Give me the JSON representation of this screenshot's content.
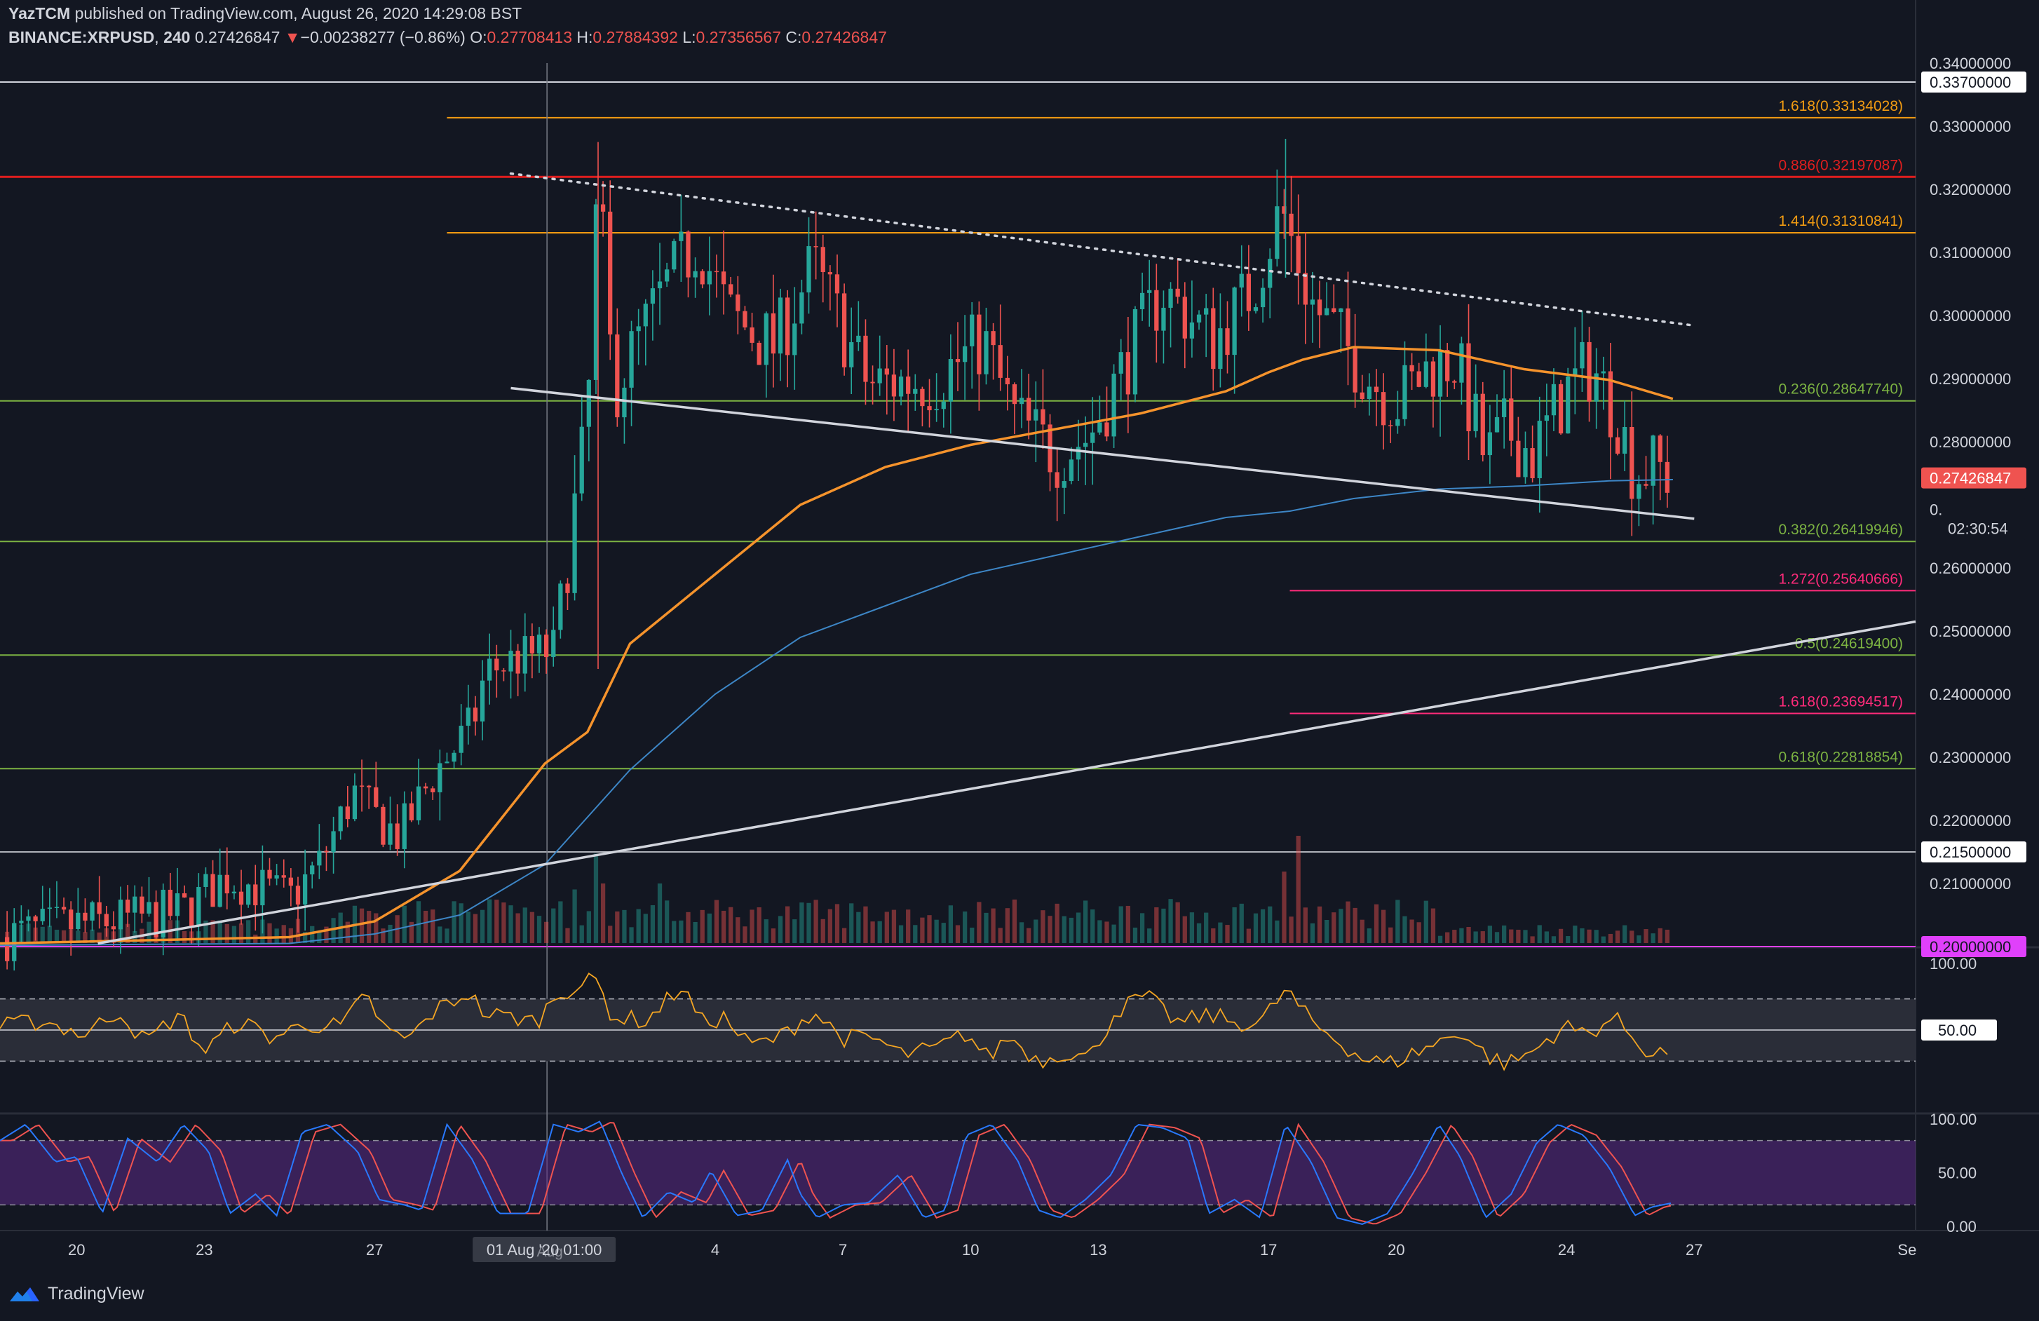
{
  "header": {
    "author": "YazTCM",
    "published_text": "published on TradingView.com, August 26, 2020 14:29:08 BST",
    "symbol": "BINANCE:XRPUSD",
    "interval": "240",
    "last_price": "0.27426847",
    "change_arrow": "▼",
    "change": "−0.00238277 (−0.86%)",
    "o_label": "O:",
    "o_value": "0.27708413",
    "h_label": "H:",
    "h_value": "0.27884392",
    "l_label": "L:",
    "l_value": "0.27356567",
    "c_label": "C:",
    "c_value": "0.27426847"
  },
  "brand": {
    "name": "TradingView",
    "logo_icon": "tradingview-logo-icon"
  },
  "colors": {
    "background": "#131722",
    "bull": "#26a69a",
    "bear": "#ef5350",
    "ma_orange": "#f5932c",
    "ma_blue": "#3d86c6",
    "fib_orange": "#f39c12",
    "fib_green": "#7cb342",
    "fib_pink": "#ff2b7a",
    "resistance_red": "#e01e1e",
    "magenta": "#e040fb",
    "rsi_line": "#f5a623",
    "stoch_k": "#2979ff",
    "stoch_d": "#ef5350",
    "stoch_band": "#5b2a86"
  },
  "chart_data": {
    "type": "candlestick",
    "symbol": "BINANCE:XRPUSD",
    "ylim": [
      0.2,
      0.34
    ],
    "y_ticks": [
      "0.34000000",
      "0.33000000",
      "0.32000000",
      "0.31000000",
      "0.30000000",
      "0.29000000",
      "0.28000000",
      "0.26000000",
      "0.25000000",
      "0.24000000",
      "0.23000000",
      "0.22000000",
      "0.21000000"
    ],
    "y_tick_values": [
      0.34,
      0.33,
      0.32,
      0.31,
      0.3,
      0.29,
      0.28,
      0.26,
      0.25,
      0.24,
      0.23,
      0.22,
      0.21
    ],
    "x_ticks": [
      "20",
      "23",
      "27",
      "4",
      "7",
      "10",
      "13",
      "17",
      "20",
      "24",
      "27",
      "Se"
    ],
    "x_tick_pos": [
      20,
      23,
      27,
      35,
      38,
      41,
      44,
      48,
      51,
      55,
      58,
      63
    ],
    "x_range": [
      18.2,
      63.2
    ],
    "crosshair_label": "01 Aug '20   01:00",
    "crosshair_label_sub": "Aug",
    "crosshair_x": 31.05,
    "price_badges": [
      {
        "text": "0.33700000",
        "value": 0.337,
        "style": "white"
      },
      {
        "text": "0.27426847",
        "value": 0.27426847,
        "style": "red"
      },
      {
        "text": "0.",
        "sub": "02:30:54",
        "value": 0.2705,
        "style": "dark"
      },
      {
        "text": "0.21500000",
        "value": 0.215,
        "style": "white"
      },
      {
        "text": "0.20000000",
        "value": 0.2,
        "style": "magenta"
      }
    ],
    "horizontal_levels": [
      {
        "value": 0.337,
        "color": "#d1d4dc",
        "x_start": 18.2,
        "label": ""
      },
      {
        "value": 0.33134028,
        "color": "#f39c12",
        "x_start": 28.7,
        "label": "1.618(0.33134028)"
      },
      {
        "value": 0.32197087,
        "color": "#e01e1e",
        "x_start": 18.2,
        "label": "0.886(0.32197087)"
      },
      {
        "value": 0.31310841,
        "color": "#f39c12",
        "x_start": 28.7,
        "label": "1.414(0.31310841)"
      },
      {
        "value": 0.2864774,
        "color": "#7cb342",
        "x_start": 18.2,
        "label": "0.236(0.28647740)"
      },
      {
        "value": 0.26419946,
        "color": "#7cb342",
        "x_start": 18.2,
        "label": "0.382(0.26419946)"
      },
      {
        "value": 0.25640666,
        "color": "#ff2b7a",
        "x_start": 48.5,
        "label": "1.272(0.25640666)"
      },
      {
        "value": 0.246194,
        "color": "#7cb342",
        "x_start": 18.2,
        "label": "0.5(0.24619400)"
      },
      {
        "value": 0.23694517,
        "color": "#ff2b7a",
        "x_start": 48.5,
        "label": "1.618(0.23694517)"
      },
      {
        "value": 0.22818854,
        "color": "#7cb342",
        "x_start": 18.2,
        "label": "0.618(0.22818854)"
      },
      {
        "value": 0.215,
        "color": "#b0b3ba",
        "x_start": 18.2,
        "label": ""
      },
      {
        "value": 0.2,
        "color": "#e040fb",
        "x_start": 18.2,
        "label": ""
      }
    ],
    "trendlines": [
      {
        "points": [
          [
            30.2,
            0.2885
          ],
          [
            58.0,
            0.2678
          ]
        ],
        "color": "#d1d4dc",
        "style": "solid"
      },
      {
        "points": [
          [
            20.5,
            0.2005
          ],
          [
            63.2,
            0.2515
          ]
        ],
        "color": "#d1d4dc",
        "style": "solid"
      },
      {
        "points": [
          [
            30.2,
            0.3225
          ],
          [
            57.9,
            0.2985
          ]
        ],
        "color": "#d1d4dc",
        "style": "dotted"
      }
    ],
    "close_anchors": [
      [
        18.2,
        0.2015
      ],
      [
        20.0,
        0.2035
      ],
      [
        21.5,
        0.2045
      ],
      [
        22.5,
        0.2055
      ],
      [
        23.5,
        0.211
      ],
      [
        24.2,
        0.2095
      ],
      [
        25.0,
        0.2075
      ],
      [
        25.7,
        0.213
      ],
      [
        26.5,
        0.2245
      ],
      [
        27.0,
        0.2205
      ],
      [
        27.6,
        0.2175
      ],
      [
        28.4,
        0.2275
      ],
      [
        29.3,
        0.235
      ],
      [
        29.6,
        0.2435
      ],
      [
        30.3,
        0.2455
      ],
      [
        31.2,
        0.247
      ],
      [
        31.6,
        0.265
      ],
      [
        32.0,
        0.283
      ],
      [
        32.25,
        0.3225
      ],
      [
        32.6,
        0.288
      ],
      [
        33.2,
        0.296
      ],
      [
        33.8,
        0.304
      ],
      [
        34.6,
        0.312
      ],
      [
        35.3,
        0.3
      ],
      [
        36.4,
        0.295
      ],
      [
        37.3,
        0.308
      ],
      [
        38.6,
        0.289
      ],
      [
        40.2,
        0.29
      ],
      [
        41.3,
        0.296
      ],
      [
        42.0,
        0.284
      ],
      [
        43.0,
        0.278
      ],
      [
        43.8,
        0.281
      ],
      [
        44.6,
        0.292
      ],
      [
        45.5,
        0.304
      ],
      [
        46.7,
        0.296
      ],
      [
        47.6,
        0.304
      ],
      [
        48.3,
        0.317
      ],
      [
        49.0,
        0.302
      ],
      [
        49.7,
        0.296
      ],
      [
        50.4,
        0.29
      ],
      [
        51.0,
        0.286
      ],
      [
        51.8,
        0.292
      ],
      [
        52.4,
        0.293
      ],
      [
        53.1,
        0.277
      ],
      [
        53.6,
        0.282
      ],
      [
        54.2,
        0.278
      ],
      [
        55.0,
        0.288
      ],
      [
        55.6,
        0.292
      ],
      [
        56.2,
        0.284
      ],
      [
        56.6,
        0.275
      ],
      [
        57.1,
        0.276
      ],
      [
        57.5,
        0.27426847
      ]
    ],
    "candles_per_day": 6,
    "last_candle_x": 57.5,
    "ma_orange": [
      [
        18.2,
        0.2005
      ],
      [
        25.0,
        0.2015
      ],
      [
        27.0,
        0.204
      ],
      [
        29.0,
        0.212
      ],
      [
        31.0,
        0.229
      ],
      [
        32.0,
        0.234
      ],
      [
        33.0,
        0.248
      ],
      [
        35.0,
        0.259
      ],
      [
        37.0,
        0.27
      ],
      [
        39.0,
        0.276
      ],
      [
        41.0,
        0.2795
      ],
      [
        43.0,
        0.282
      ],
      [
        45.0,
        0.2845
      ],
      [
        47.0,
        0.288
      ],
      [
        48.0,
        0.291
      ],
      [
        48.8,
        0.293
      ],
      [
        50.0,
        0.295
      ],
      [
        52.0,
        0.2945
      ],
      [
        54.0,
        0.2915
      ],
      [
        56.0,
        0.2898
      ],
      [
        57.5,
        0.2868
      ]
    ],
    "ma_blue": [
      [
        18.2,
        0.2002
      ],
      [
        25.0,
        0.2005
      ],
      [
        27.0,
        0.202
      ],
      [
        29.0,
        0.205
      ],
      [
        31.0,
        0.213
      ],
      [
        33.0,
        0.228
      ],
      [
        35.0,
        0.24
      ],
      [
        37.0,
        0.249
      ],
      [
        39.0,
        0.254
      ],
      [
        41.0,
        0.259
      ],
      [
        43.0,
        0.262
      ],
      [
        45.0,
        0.265
      ],
      [
        47.0,
        0.268
      ],
      [
        48.5,
        0.269
      ],
      [
        50.0,
        0.271
      ],
      [
        52.0,
        0.2725
      ],
      [
        54.0,
        0.273
      ],
      [
        56.0,
        0.2738
      ],
      [
        57.5,
        0.274
      ]
    ],
    "volume_spikes": [
      [
        32.1,
        0.75
      ],
      [
        32.3,
        0.5
      ],
      [
        31.7,
        0.45
      ],
      [
        33.6,
        0.5
      ],
      [
        48.4,
        0.6
      ],
      [
        48.6,
        0.9
      ],
      [
        36.0,
        0.3
      ],
      [
        30.4,
        0.25
      ],
      [
        45.4,
        0.3
      ],
      [
        27.0,
        0.25
      ]
    ],
    "rsi": {
      "ylim": [
        0,
        100
      ],
      "levels": [
        70,
        50,
        30
      ],
      "axis_labels": [
        "100.00",
        "50.00"
      ],
      "anchors": [
        [
          18.2,
          52
        ],
        [
          19.2,
          56
        ],
        [
          20.2,
          47
        ],
        [
          21.0,
          63
        ],
        [
          21.6,
          42
        ],
        [
          22.4,
          60
        ],
        [
          23.0,
          36
        ],
        [
          23.8,
          56
        ],
        [
          24.6,
          45
        ],
        [
          25.4,
          54
        ],
        [
          26.2,
          52
        ],
        [
          26.8,
          72
        ],
        [
          27.3,
          48
        ],
        [
          27.8,
          44
        ],
        [
          28.4,
          62
        ],
        [
          29.2,
          74
        ],
        [
          29.6,
          60
        ],
        [
          30.3,
          58
        ],
        [
          30.8,
          55
        ],
        [
          31.3,
          74
        ],
        [
          32.2,
          82
        ],
        [
          32.6,
          58
        ],
        [
          33.4,
          56
        ],
        [
          34.2,
          78
        ],
        [
          34.7,
          55
        ],
        [
          35.2,
          58
        ],
        [
          35.8,
          40
        ],
        [
          36.5,
          45
        ],
        [
          37.3,
          62
        ],
        [
          38.0,
          45
        ],
        [
          38.8,
          44
        ],
        [
          39.4,
          34
        ],
        [
          40.2,
          38
        ],
        [
          40.9,
          48
        ],
        [
          41.4,
          32
        ],
        [
          41.9,
          46
        ],
        [
          42.6,
          30
        ],
        [
          43.2,
          36
        ],
        [
          43.8,
          32
        ],
        [
          44.4,
          62
        ],
        [
          45.1,
          72
        ],
        [
          45.9,
          54
        ],
        [
          46.6,
          60
        ],
        [
          47.2,
          55
        ],
        [
          47.8,
          54
        ],
        [
          48.4,
          76
        ],
        [
          49.0,
          55
        ],
        [
          49.6,
          44
        ],
        [
          50.2,
          32
        ],
        [
          50.8,
          28
        ],
        [
          51.4,
          35
        ],
        [
          52.0,
          42
        ],
        [
          52.5,
          50
        ],
        [
          53.1,
          34
        ],
        [
          53.6,
          28
        ],
        [
          54.2,
          36
        ],
        [
          54.9,
          52
        ],
        [
          55.5,
          48
        ],
        [
          56.1,
          58
        ],
        [
          56.6,
          45
        ],
        [
          57.0,
          34
        ],
        [
          57.5,
          38
        ]
      ]
    },
    "stoch": {
      "ylim": [
        0,
        100
      ],
      "band": [
        20,
        80
      ],
      "axis_labels": [
        "100.00",
        "50.00",
        "0.00"
      ],
      "k_anchors": [
        [
          18.2,
          80
        ],
        [
          18.8,
          95
        ],
        [
          19.5,
          60
        ],
        [
          20.0,
          65
        ],
        [
          20.6,
          12
        ],
        [
          21.2,
          82
        ],
        [
          21.9,
          60
        ],
        [
          22.5,
          95
        ],
        [
          23.1,
          70
        ],
        [
          23.6,
          12
        ],
        [
          24.2,
          30
        ],
        [
          24.7,
          10
        ],
        [
          25.3,
          88
        ],
        [
          25.9,
          95
        ],
        [
          26.6,
          70
        ],
        [
          27.1,
          25
        ],
        [
          27.7,
          20
        ],
        [
          28.1,
          15
        ],
        [
          28.7,
          95
        ],
        [
          29.3,
          62
        ],
        [
          29.9,
          12
        ],
        [
          30.6,
          12
        ],
        [
          31.2,
          95
        ],
        [
          31.8,
          88
        ],
        [
          32.3,
          98
        ],
        [
          32.8,
          50
        ],
        [
          33.3,
          8
        ],
        [
          33.9,
          32
        ],
        [
          34.5,
          22
        ],
        [
          34.9,
          52
        ],
        [
          35.5,
          10
        ],
        [
          36.1,
          15
        ],
        [
          36.7,
          62
        ],
        [
          37.0,
          30
        ],
        [
          37.4,
          8
        ],
        [
          38.0,
          20
        ],
        [
          38.6,
          22
        ],
        [
          39.3,
          48
        ],
        [
          39.9,
          8
        ],
        [
          40.4,
          15
        ],
        [
          40.9,
          85
        ],
        [
          41.5,
          95
        ],
        [
          42.1,
          62
        ],
        [
          42.6,
          15
        ],
        [
          43.1,
          8
        ],
        [
          43.7,
          25
        ],
        [
          44.3,
          48
        ],
        [
          44.9,
          95
        ],
        [
          45.5,
          92
        ],
        [
          46.1,
          82
        ],
        [
          46.6,
          12
        ],
        [
          47.2,
          25
        ],
        [
          47.8,
          8
        ],
        [
          48.4,
          95
        ],
        [
          49.0,
          60
        ],
        [
          49.6,
          8
        ],
        [
          50.2,
          2
        ],
        [
          50.8,
          12
        ],
        [
          51.4,
          50
        ],
        [
          52.0,
          95
        ],
        [
          52.5,
          65
        ],
        [
          53.1,
          8
        ],
        [
          53.7,
          30
        ],
        [
          54.3,
          78
        ],
        [
          54.8,
          95
        ],
        [
          55.4,
          85
        ],
        [
          56.0,
          55
        ],
        [
          56.6,
          10
        ],
        [
          57.0,
          18
        ],
        [
          57.5,
          22
        ]
      ]
    }
  }
}
